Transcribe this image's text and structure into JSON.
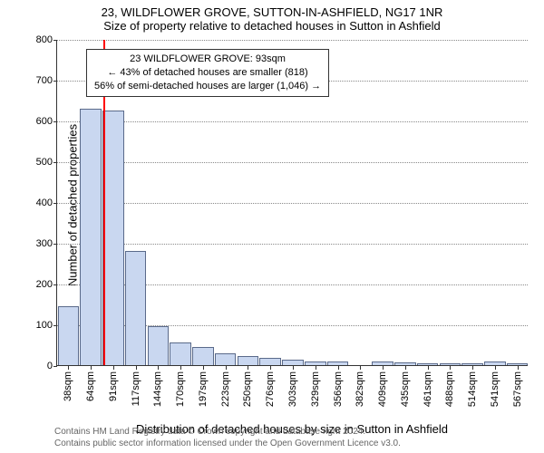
{
  "title_main": "23, WILDFLOWER GROVE, SUTTON-IN-ASHFIELD, NG17 1NR",
  "title_sub": "Size of property relative to detached houses in Sutton in Ashfield",
  "y_axis_title": "Number of detached properties",
  "x_axis_title": "Distribution of detached houses by size in Sutton in Ashfield",
  "footer_line1": "Contains HM Land Registry data © Crown copyright and database right 2024.",
  "footer_line2": "Contains public sector information licensed under the Open Government Licence v3.0.",
  "annotation": {
    "line1": "23 WILDFLOWER GROVE: 93sqm",
    "line2": "← 43% of detached houses are smaller (818)",
    "line3": "56% of semi-detached houses are larger (1,046) →"
  },
  "chart": {
    "type": "histogram",
    "ylim": [
      0,
      800
    ],
    "ytick_step": 100,
    "yticks": [
      0,
      100,
      200,
      300,
      400,
      500,
      600,
      700,
      800
    ],
    "xtick_labels": [
      "38sqm",
      "64sqm",
      "91sqm",
      "117sqm",
      "144sqm",
      "170sqm",
      "197sqm",
      "223sqm",
      "250sqm",
      "276sqm",
      "303sqm",
      "329sqm",
      "356sqm",
      "382sqm",
      "409sqm",
      "435sqm",
      "461sqm",
      "488sqm",
      "514sqm",
      "541sqm",
      "567sqm"
    ],
    "values": [
      145,
      630,
      625,
      280,
      95,
      55,
      45,
      30,
      22,
      18,
      14,
      10,
      10,
      0,
      8,
      6,
      5,
      5,
      4,
      10,
      4
    ],
    "bar_fill": "#c9d7f0",
    "bar_stroke": "#5a6a8a",
    "background_color": "#ffffff",
    "grid_color": "#8a8a8a",
    "axis_color": "#333333",
    "marker_color": "#ff0000",
    "marker_index_after_bar": 2,
    "label_fontsize": 11,
    "title_fontsize": 13,
    "bar_gap_ratio": 0.05
  }
}
